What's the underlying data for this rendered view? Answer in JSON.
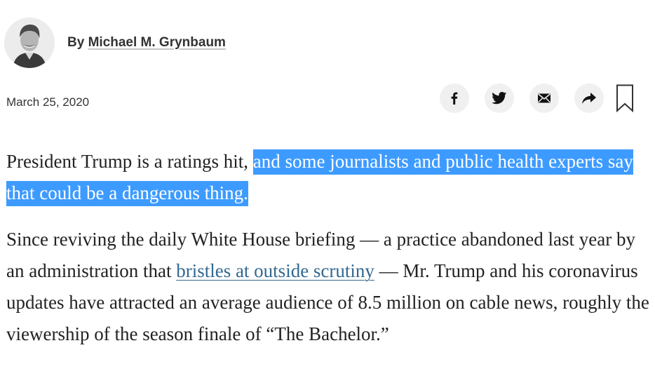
{
  "byline": {
    "prefix": "By ",
    "author": "Michael M. Grynbaum"
  },
  "date": "March 25, 2020",
  "share": {
    "buttons": [
      {
        "name": "facebook",
        "icon": "facebook-icon"
      },
      {
        "name": "twitter",
        "icon": "twitter-icon"
      },
      {
        "name": "email",
        "icon": "email-icon"
      },
      {
        "name": "share",
        "icon": "share-arrow-icon"
      }
    ],
    "bookmark_icon": "bookmark-icon"
  },
  "article": {
    "p1_plain": "President Trump is a ratings hit, ",
    "p1_highlighted": "and some journalists and public health experts say that could be a dangerous thing.",
    "p2_before": "Since reviving the daily White House briefing — a practice abandoned last year by an administration that ",
    "p2_link": "bristles at outside scrutiny",
    "p2_after": " — Mr. Trump and his coronavirus updates have attracted an average audience of 8.5 million on cable news, roughly the viewership of the season finale of “The Bachelor.”"
  },
  "colors": {
    "highlight": "#3d9bff",
    "link": "#326891",
    "share_button_bg": "#f0f0f0"
  }
}
